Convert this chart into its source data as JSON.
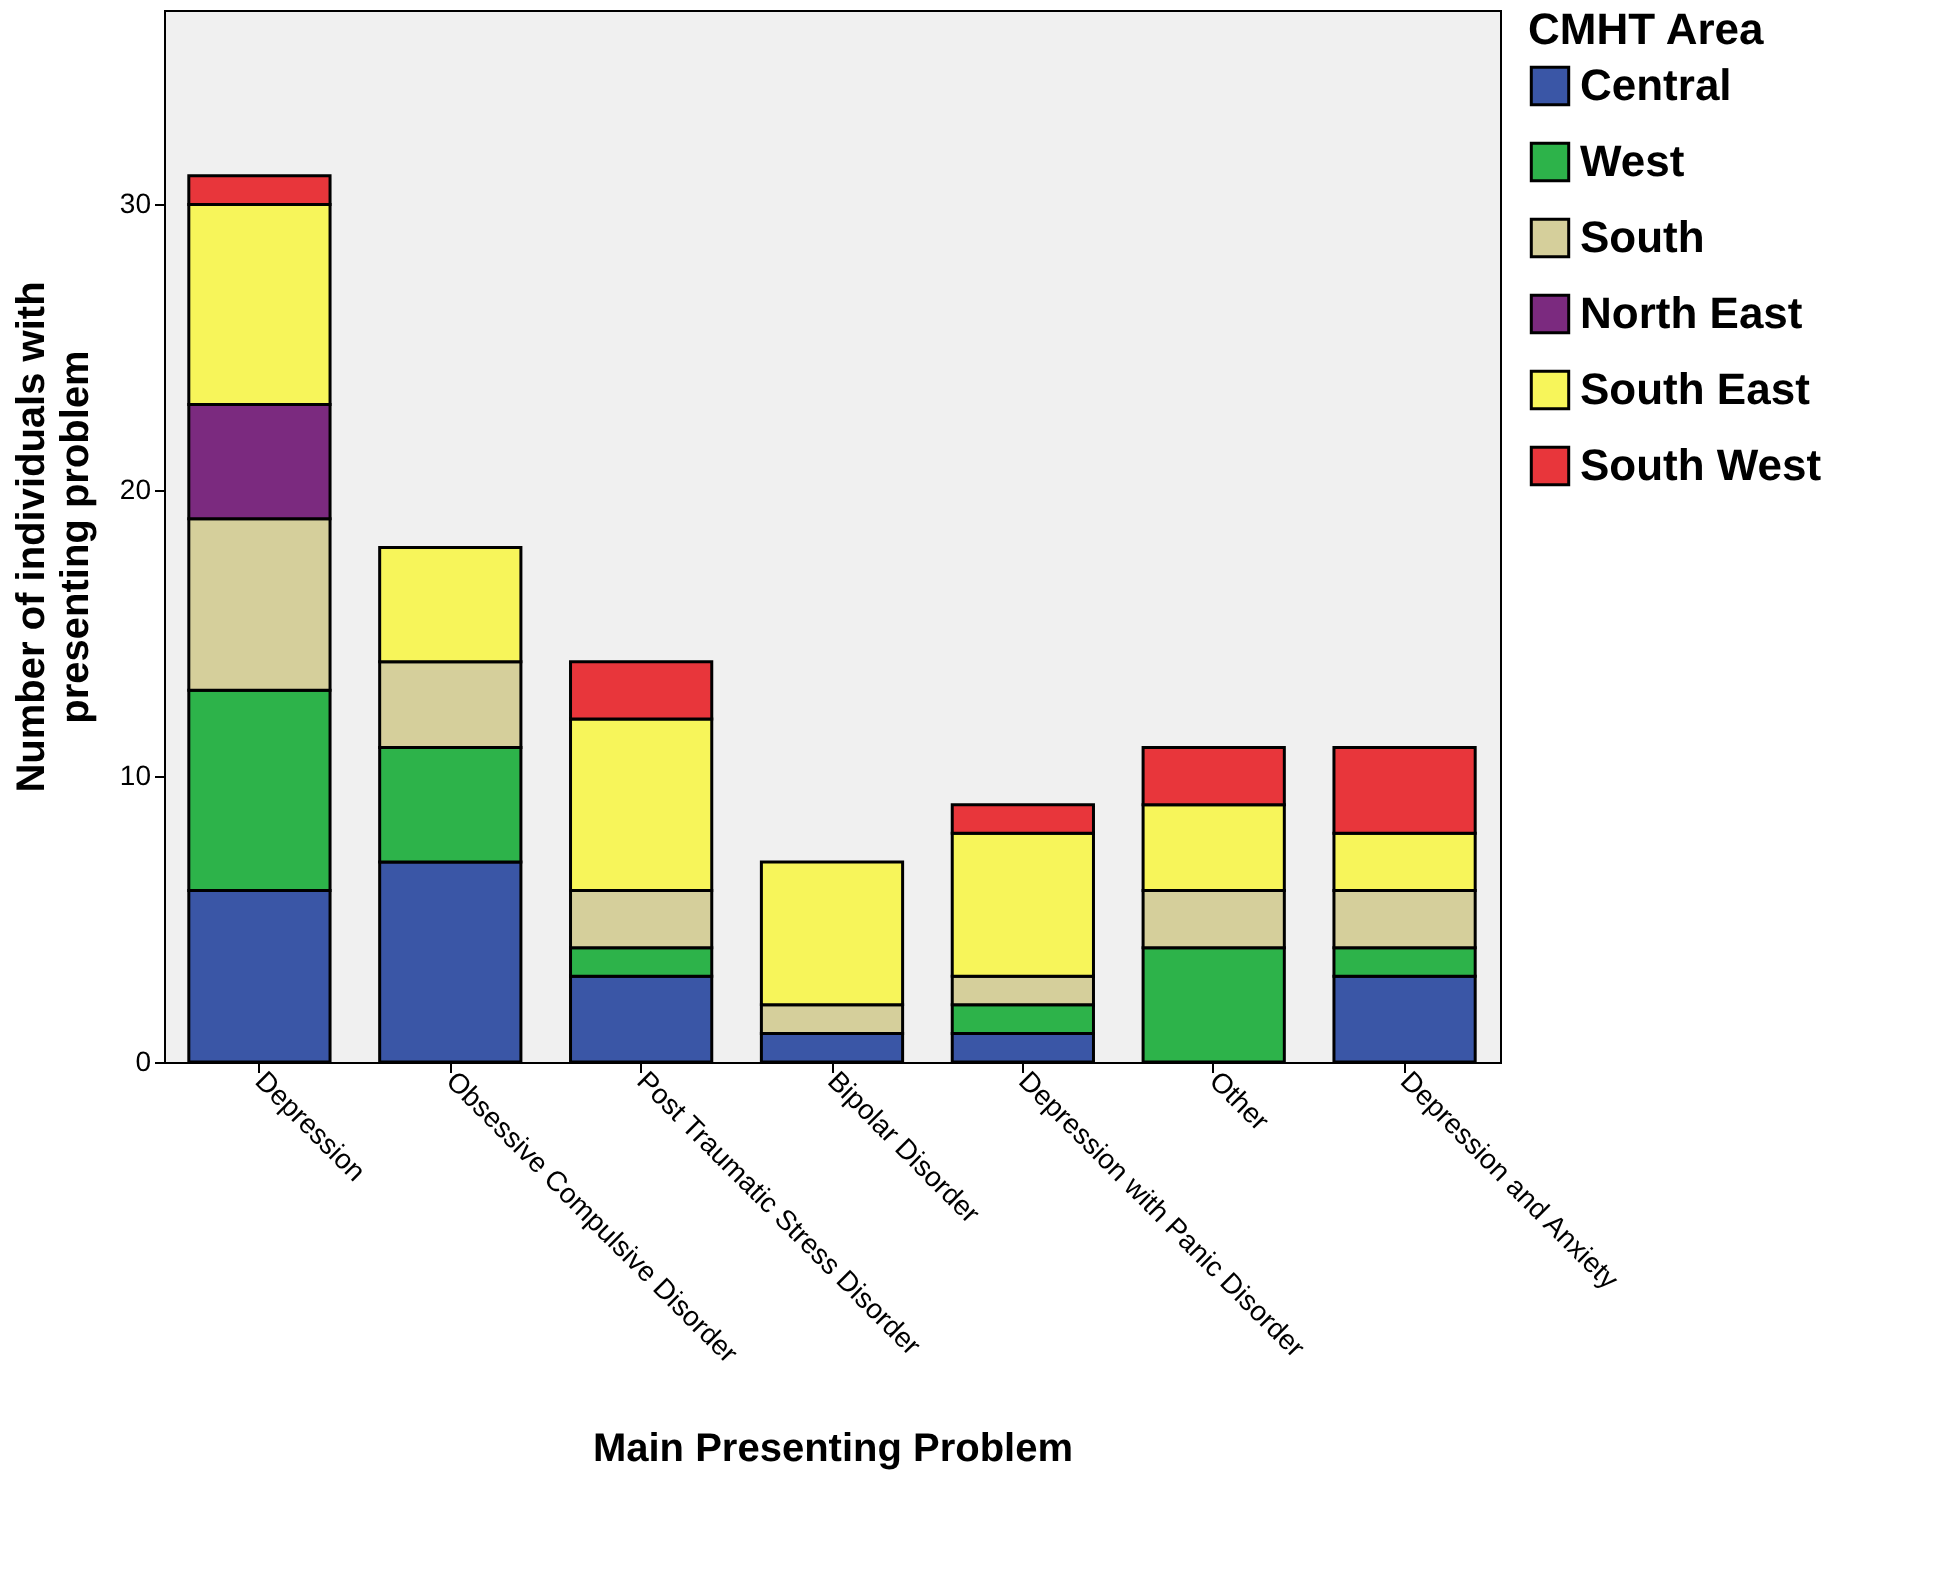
{
  "chart_data": {
    "type": "bar",
    "stacked": true,
    "xlabel": "Main Presenting Problem",
    "ylabel": "Number of individuals with presenting problem",
    "legend_title": "CMHT Area",
    "legend": "top right",
    "grid": false,
    "categories": [
      "Depression",
      "Obsessive Compulsive Disorder",
      "Post Traumatic Stress Disorder",
      "Bipolar Disorder",
      "Depression with Panic Disorder",
      "Other",
      "Depression and Anxiety"
    ],
    "ylim": [
      0,
      36.8
    ],
    "yticks": [
      0,
      10,
      20,
      30
    ],
    "series": [
      {
        "name": "Central",
        "color": "#3a56a6",
        "values": [
          6,
          7,
          3,
          1,
          1,
          null,
          3
        ]
      },
      {
        "name": "West",
        "color": "#2db34a",
        "values": [
          7,
          4,
          1,
          null,
          1,
          4,
          1
        ]
      },
      {
        "name": "South",
        "color": "#d5cf9b",
        "values": [
          6,
          3,
          2,
          1,
          1,
          2,
          2
        ]
      },
      {
        "name": "North East",
        "color": "#7b2a7f",
        "values": [
          4,
          null,
          null,
          null,
          null,
          null,
          null
        ]
      },
      {
        "name": "South East",
        "color": "#f7f55a",
        "values": [
          7,
          4,
          6,
          5,
          5,
          3,
          2
        ]
      },
      {
        "name": "South West",
        "color": "#e8363b",
        "values": [
          1,
          null,
          2,
          null,
          1,
          2,
          3
        ]
      }
    ]
  }
}
